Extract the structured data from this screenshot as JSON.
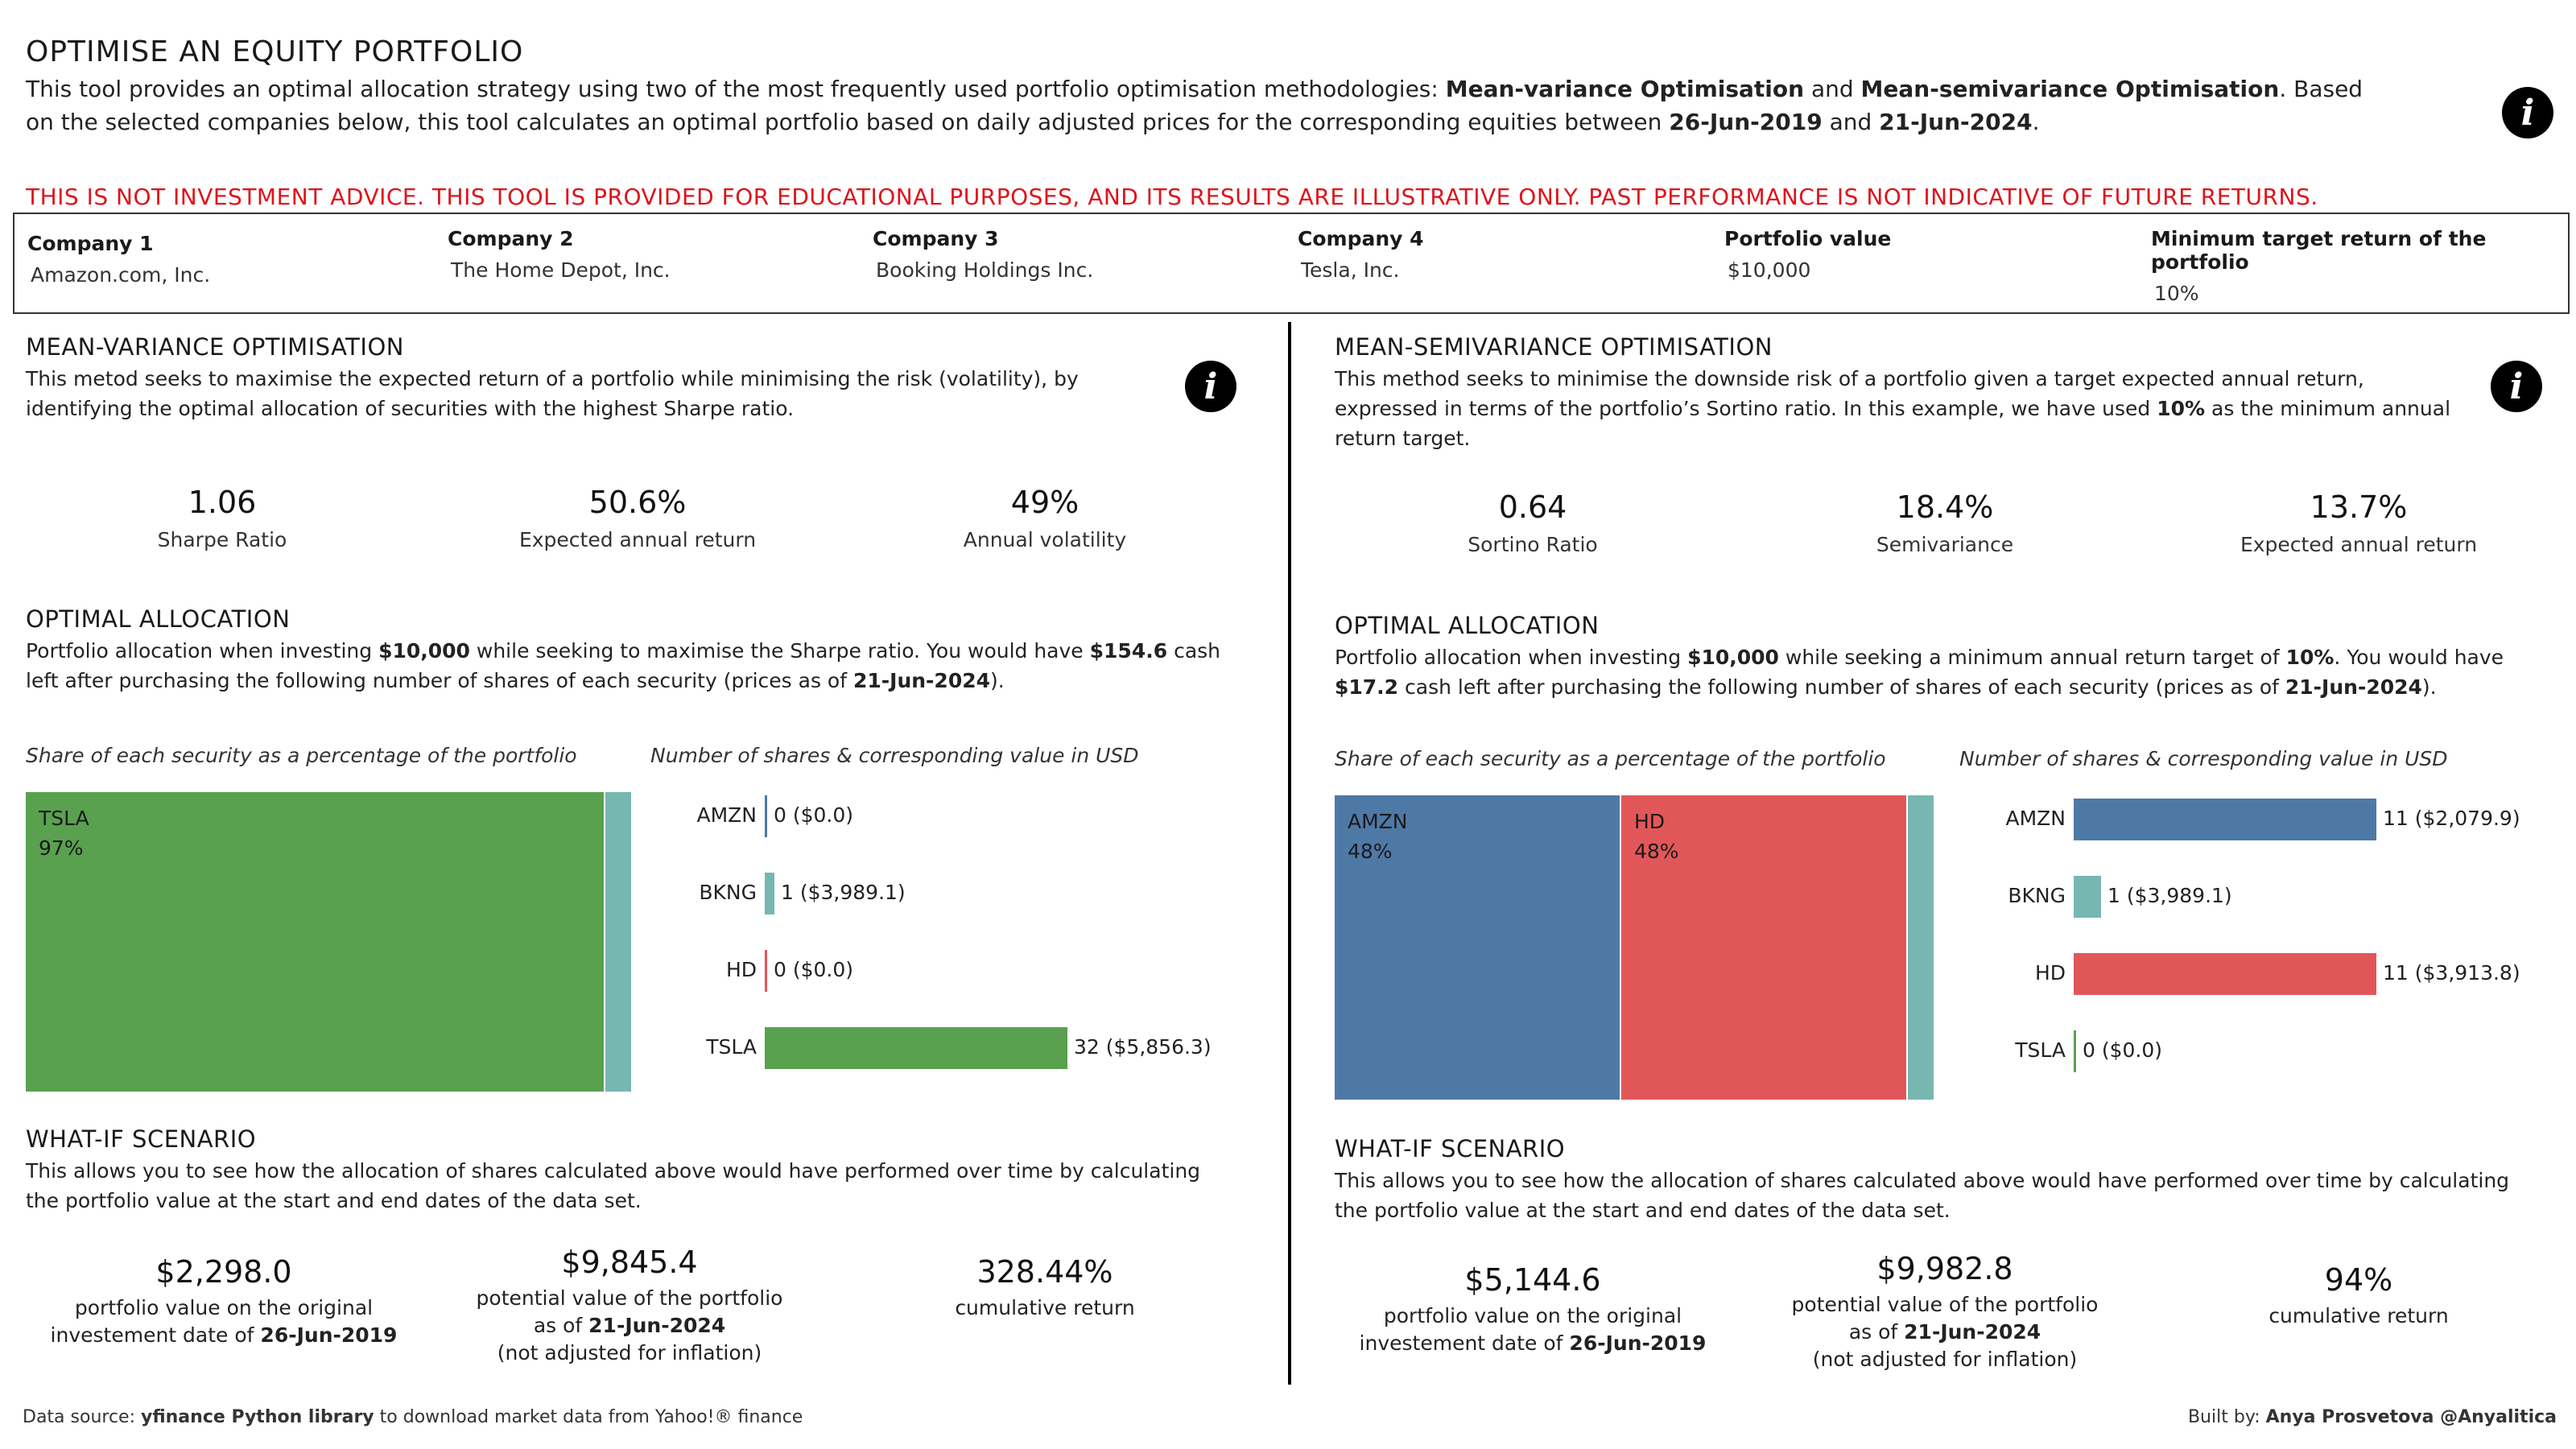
{
  "header": {
    "title": "OPTIMISE AN EQUITY PORTFOLIO",
    "intro_a": "This tool provides an optimal allocation strategy using two of the most frequently used portfolio optimisation methodologies: ",
    "method1": "Mean-variance Optimisation",
    "and": " and ",
    "method2": "Mean-semivariance Optimisation",
    "intro_b": ". Based on the selected companies below, this tool calculates an optimal portfolio based on daily adjusted prices for the corresponding equities between ",
    "start_date": "26-Jun-2019",
    "and2": " and ",
    "end_date": "21-Jun-2024",
    "period": ".",
    "disclaimer": "THIS IS NOT INVESTMENT ADVICE. THIS TOOL IS PROVIDED FOR EDUCATIONAL PURPOSES, AND ITS RESULTS ARE ILLUSTRATIVE ONLY. PAST PERFORMANCE IS NOT INDICATIVE OF FUTURE RETURNS."
  },
  "params": [
    {
      "label": "Company 1",
      "value": "Amazon.com, Inc."
    },
    {
      "label": "Company 2",
      "value": "The Home Depot, Inc."
    },
    {
      "label": "Company 3",
      "value": "Booking Holdings Inc."
    },
    {
      "label": "Company 4",
      "value": "Tesla, Inc."
    },
    {
      "label": "Portfolio value",
      "value": "$10,000"
    },
    {
      "label": "Minimum target return of the portfolio",
      "value": "10%"
    }
  ],
  "colors": {
    "amzn": "#4e79a7",
    "bkng": "#76b7b2",
    "hd": "#e15759",
    "tsla": "#59a14f"
  },
  "left": {
    "heading": "MEAN-VARIANCE OPTIMISATION",
    "desc": "This metod seeks to maximise the expected return of a portfolio while minimising the risk (volatility), by identifying the optimal allocation of securities with the highest Sharpe ratio.",
    "kpis": [
      {
        "value": "1.06",
        "label": "Sharpe Ratio"
      },
      {
        "value": "50.6%",
        "label": "Expected annual return"
      },
      {
        "value": "49%",
        "label": "Annual volatility"
      }
    ],
    "alloc_heading": "OPTIMAL ALLOCATION",
    "alloc_a": "Portfolio allocation when investing ",
    "alloc_amount": "$10,000",
    "alloc_b": " while seeking to maximise the Sharpe ratio. You would have ",
    "alloc_cash": "$154.6",
    "alloc_c": " cash left after purchasing the following number of shares of each security (prices as of ",
    "alloc_date": "21-Jun-2024",
    "alloc_d": ").",
    "treemap_title": "Share of each security as a percentage of the portfolio",
    "bars_title": "Number of shares & corresponding value in USD",
    "treemap": [
      {
        "ticker": "TSLA",
        "pct_label": "97%",
        "share": 0.97,
        "color": "tsla"
      },
      {
        "ticker": "BKNG",
        "pct_label": "",
        "share": 0.03,
        "color": "bkng"
      }
    ],
    "bars": [
      {
        "ticker": "AMZN",
        "shares": 0,
        "label": "0 ($0.0)",
        "usd": 0,
        "color": "amzn"
      },
      {
        "ticker": "BKNG",
        "shares": 1,
        "label": "1 ($3,989.1)",
        "usd": 3989.1,
        "color": "bkng"
      },
      {
        "ticker": "HD",
        "shares": 0,
        "label": "0 ($0.0)",
        "usd": 0,
        "color": "hd"
      },
      {
        "ticker": "TSLA",
        "shares": 32,
        "label": "32 ($5,856.3)",
        "usd": 5856.3,
        "color": "tsla"
      }
    ],
    "bars_max": 32,
    "whatif_heading": "WHAT-IF SCENARIO",
    "whatif_desc": "This allows you to see how the allocation of shares calculated above would have performed over time by calculating the portfolio value at the start and end dates of the data set.",
    "start_value": "$2,298.0",
    "start_cap1": "portfolio value on the original",
    "start_cap2": "investement date of ",
    "start_date": "26-Jun-2019",
    "end_value": "$9,845.4",
    "end_cap1": "potential value of the portfolio",
    "end_cap2": "as of ",
    "end_date": "21-Jun-2024",
    "end_cap3": "(not adjusted for inflation)",
    "cum_value": "328.44%",
    "cum_label": "cumulative return"
  },
  "right": {
    "heading": "MEAN-SEMIVARIANCE OPTIMISATION",
    "desc_a": "This method seeks to minimise the downside risk of a portfolio given a target expected annual return, expressed in terms of the portfolio’s Sortino ratio. In this example, we have used ",
    "desc_target": "10%",
    "desc_b": " as the minimum annual return target.",
    "kpis": [
      {
        "value": "0.64",
        "label": "Sortino Ratio"
      },
      {
        "value": "18.4%",
        "label": "Semivariance"
      },
      {
        "value": "13.7%",
        "label": "Expected annual return"
      }
    ],
    "alloc_heading": "OPTIMAL ALLOCATION",
    "alloc_a": "Portfolio allocation when investing ",
    "alloc_amount": "$10,000",
    "alloc_b": " while seeking a minimum annual return target of ",
    "alloc_target": "10%",
    "alloc_c": ". You would have ",
    "alloc_cash": "$17.2",
    "alloc_d": " cash left after purchasing the following number of shares of each security (prices as of ",
    "alloc_date": "21-Jun-2024",
    "alloc_e": ").",
    "treemap_title": "Share of each security as a percentage of the portfolio",
    "bars_title": "Number of shares & corresponding value in USD",
    "treemap": [
      {
        "ticker": "AMZN",
        "pct_label": "48%",
        "share": 0.48,
        "color": "amzn"
      },
      {
        "ticker": "HD",
        "pct_label": "48%",
        "share": 0.48,
        "color": "hd"
      },
      {
        "ticker": "BKNG",
        "pct_label": "",
        "share": 0.04,
        "color": "bkng"
      }
    ],
    "bars": [
      {
        "ticker": "AMZN",
        "shares": 11,
        "label": "11 ($2,079.9)",
        "usd": 2079.9,
        "color": "amzn"
      },
      {
        "ticker": "BKNG",
        "shares": 1,
        "label": "1 ($3,989.1)",
        "usd": 3989.1,
        "color": "bkng"
      },
      {
        "ticker": "HD",
        "shares": 11,
        "label": "11 ($3,913.8)",
        "usd": 3913.8,
        "color": "hd"
      },
      {
        "ticker": "TSLA",
        "shares": 0,
        "label": "0 ($0.0)",
        "usd": 0,
        "color": "tsla"
      }
    ],
    "bars_max": 11,
    "whatif_heading": "WHAT-IF SCENARIO",
    "whatif_desc": "This allows you to see how the allocation of shares calculated above would have performed over time by calculating the portfolio value at the start and end dates of the data set.",
    "start_value": "$5,144.6",
    "start_cap1": "portfolio value on the original",
    "start_cap2": "investement date of ",
    "start_date": "26-Jun-2019",
    "end_value": "$9,982.8",
    "end_cap1": "potential value of the portfolio",
    "end_cap2": "as of ",
    "end_date": "21-Jun-2024",
    "end_cap3": "(not adjusted for inflation)",
    "cum_value": "94%",
    "cum_label": "cumulative return"
  },
  "footer": {
    "source_a": "Data source: ",
    "source_lib": "yfinance Python library",
    "source_b": " to download market data from Yahoo!® finance",
    "built_a": "Built by: ",
    "built_name": "Anya Prosvetova @Anyalitica"
  }
}
